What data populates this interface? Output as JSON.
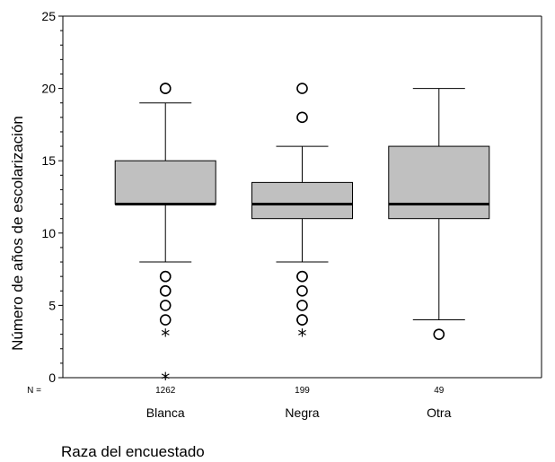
{
  "chart_data": {
    "type": "boxplot",
    "ylabel": "Número de años de escolarización",
    "xlabel": "Raza del encuestado",
    "ylim": [
      0,
      25
    ],
    "yticks": [
      0,
      5,
      10,
      15,
      20,
      25
    ],
    "n_prefix": "N =",
    "grid": false,
    "box_color": "#c0c0c0",
    "groups": [
      {
        "category": "Blanca",
        "n": "1262",
        "whisker_low": 8,
        "q1": 12,
        "median": 12,
        "q3": 15,
        "whisker_high": 19,
        "outliers": [
          20,
          20,
          7,
          7,
          6,
          6,
          5,
          4
        ],
        "extremes": [
          3,
          0
        ]
      },
      {
        "category": "Negra",
        "n": "199",
        "whisker_low": 8,
        "q1": 11,
        "median": 12,
        "q3": 13.5,
        "whisker_high": 16,
        "outliers": [
          20,
          18,
          7,
          7,
          6,
          5,
          4,
          4
        ],
        "extremes": [
          3
        ]
      },
      {
        "category": "Otra",
        "n": "49",
        "whisker_low": 4,
        "q1": 11,
        "median": 12,
        "q3": 16,
        "whisker_high": 20,
        "outliers": [
          3
        ],
        "extremes": []
      }
    ]
  }
}
